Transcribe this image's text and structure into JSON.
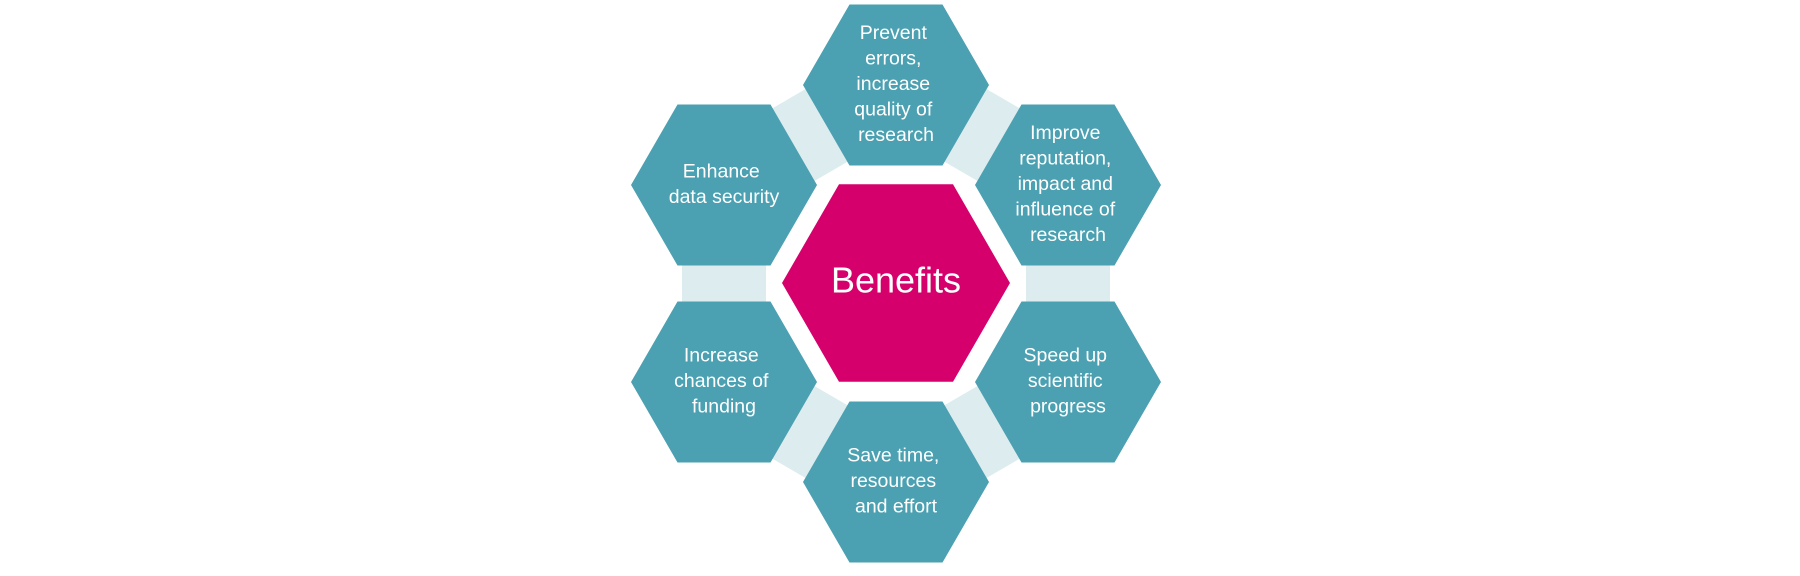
{
  "colors": {
    "outer_hex": "#4ba0b1",
    "center_hex": "#d6006d",
    "connector": "#dcecef",
    "text": "#ffffff"
  },
  "center": {
    "label": "Benefits"
  },
  "benefits": [
    {
      "lines": [
        "Prevent",
        "errors,",
        "increase",
        "quality of",
        "research"
      ]
    },
    {
      "lines": [
        "Improve",
        "reputation,",
        "impact and",
        "influence of",
        "research"
      ]
    },
    {
      "lines": [
        "Speed up",
        "scientific",
        "progress"
      ]
    },
    {
      "lines": [
        "Save time,",
        "resources",
        "and effort"
      ]
    },
    {
      "lines": [
        "Increase",
        "chances of",
        "funding"
      ]
    },
    {
      "lines": [
        "Enhance",
        "data security"
      ]
    }
  ]
}
